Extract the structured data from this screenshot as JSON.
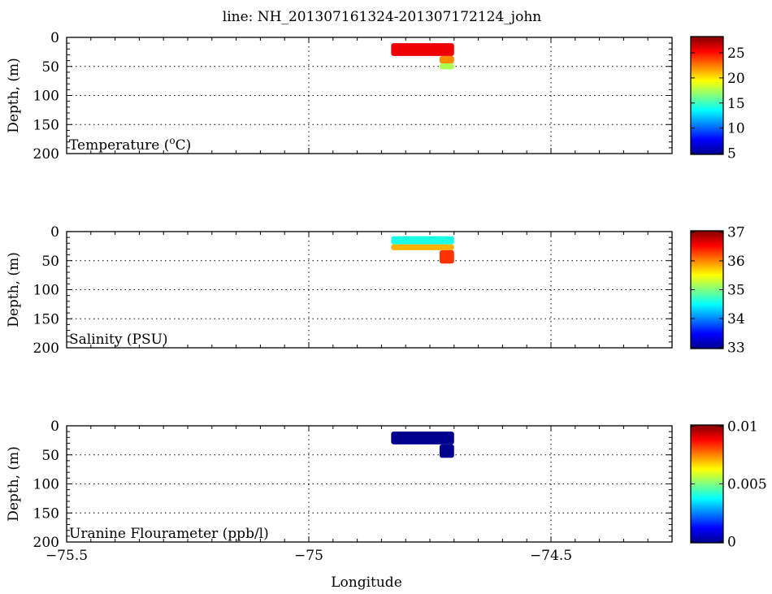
{
  "title": "line: NH_201307161324-201307172124_john",
  "xlabel": "Longitude",
  "ylabel": "Depth, (m)",
  "colormap": [
    "#00008f",
    "#0000ff",
    "#0080ff",
    "#00ffff",
    "#80ff80",
    "#ffff00",
    "#ff8000",
    "#ff0000",
    "#800000"
  ],
  "chart_data": [
    {
      "type": "scatter",
      "name": "temperature",
      "label": "Temperature (",
      "label_sup": "o",
      "label_tail": "C)",
      "xlim": [
        -75.5,
        -74.25
      ],
      "ylim": [
        200,
        0
      ],
      "xticks": [
        -75.5,
        -75,
        -74.5
      ],
      "yticks": [
        0,
        50,
        100,
        150,
        200
      ],
      "grid": true,
      "colorbar": {
        "min": 5,
        "max": 28,
        "ticks": [
          5,
          10,
          15,
          20,
          25
        ],
        "tick_labels": [
          "5",
          "10",
          "15",
          "20",
          "25"
        ]
      },
      "segments": [
        {
          "x0": -74.83,
          "x1": -74.7,
          "ztop": 10,
          "zbot": 32,
          "cval": 25.5
        },
        {
          "x0": -74.73,
          "x1": -74.7,
          "ztop": 32,
          "zbot": 45,
          "cval": 22
        },
        {
          "x0": -74.73,
          "x1": -74.7,
          "ztop": 45,
          "zbot": 55,
          "cval": 17.5
        }
      ]
    },
    {
      "type": "scatter",
      "name": "salinity",
      "label": "Salinity (PSU)",
      "xlim": [
        -75.5,
        -74.25
      ],
      "ylim": [
        200,
        0
      ],
      "xticks": [
        -75.5,
        -75,
        -74.5
      ],
      "yticks": [
        0,
        50,
        100,
        150,
        200
      ],
      "grid": true,
      "colorbar": {
        "min": 33,
        "max": 37,
        "ticks": [
          33,
          34,
          35,
          36,
          37
        ],
        "tick_labels": [
          "33",
          "34",
          "35",
          "36",
          "37"
        ]
      },
      "segments": [
        {
          "x0": -74.83,
          "x1": -74.7,
          "ztop": 8,
          "zbot": 22,
          "cval": 34.6
        },
        {
          "x0": -74.83,
          "x1": -74.7,
          "ztop": 22,
          "zbot": 32,
          "cval": 35.8
        },
        {
          "x0": -74.73,
          "x1": -74.7,
          "ztop": 32,
          "zbot": 55,
          "cval": 36.3
        }
      ]
    },
    {
      "type": "scatter",
      "name": "uranine",
      "label": "Uranine Flourameter (ppb/l)",
      "xlim": [
        -75.5,
        -74.25
      ],
      "ylim": [
        200,
        0
      ],
      "xticks": [
        -75.5,
        -75,
        -74.5
      ],
      "yticks": [
        0,
        50,
        100,
        150,
        200
      ],
      "grid": true,
      "colorbar": {
        "min": 0,
        "max": 0.01,
        "ticks": [
          0,
          0.005,
          0.01
        ],
        "tick_labels": [
          "0",
          "0.005",
          "0.01"
        ]
      },
      "segments": [
        {
          "x0": -74.83,
          "x1": -74.7,
          "ztop": 10,
          "zbot": 32,
          "cval": 0
        },
        {
          "x0": -74.73,
          "x1": -74.7,
          "ztop": 32,
          "zbot": 55,
          "cval": 0
        }
      ]
    }
  ],
  "xtick_labels": [
    "−75.5",
    "−75",
    "−74.5"
  ],
  "ytick_labels": [
    "0",
    "50",
    "100",
    "150",
    "200"
  ]
}
